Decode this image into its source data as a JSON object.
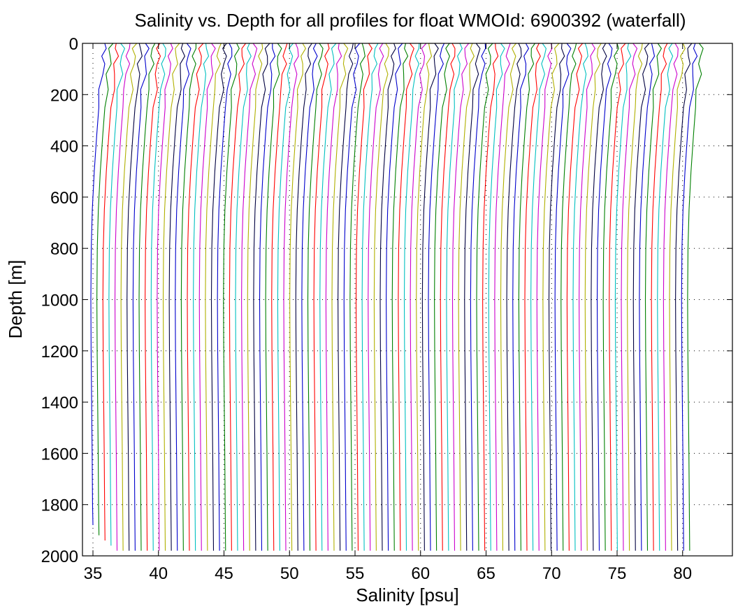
{
  "chart_data": {
    "type": "line",
    "title": "Salinity vs. Depth for all profiles for float WMOId: 6900392 (waterfall)",
    "xlabel": "Salinity [psu]",
    "ylabel": "Depth [m]",
    "xlim": [
      34.2,
      83.8
    ],
    "ylim": [
      0,
      2000
    ],
    "y_reversed": true,
    "grid": "dotted",
    "x_ticks": [
      35,
      40,
      45,
      50,
      55,
      60,
      65,
      70,
      75,
      80
    ],
    "y_ticks": [
      0,
      200,
      400,
      600,
      800,
      1000,
      1200,
      1400,
      1600,
      1800,
      2000
    ],
    "waterfall": {
      "profile_count": 100,
      "first_offset": 0,
      "offset_step": 0.46,
      "series_colors": [
        "#0000cc",
        "#008000",
        "#ff0000",
        "#00c0c0",
        "#cc00cc",
        "#b0b000",
        "#000040"
      ],
      "base_profile": {
        "depth": [
          0,
          20,
          50,
          80,
          120,
          180,
          250,
          350,
          500,
          650,
          800,
          1000,
          1200,
          1400,
          1600,
          1800,
          1980
        ],
        "salinity": [
          35.9,
          35.88,
          35.85,
          35.8,
          35.72,
          35.6,
          35.45,
          35.3,
          35.1,
          34.95,
          34.87,
          34.84,
          34.86,
          34.9,
          34.94,
          34.97,
          35.0
        ]
      }
    }
  }
}
